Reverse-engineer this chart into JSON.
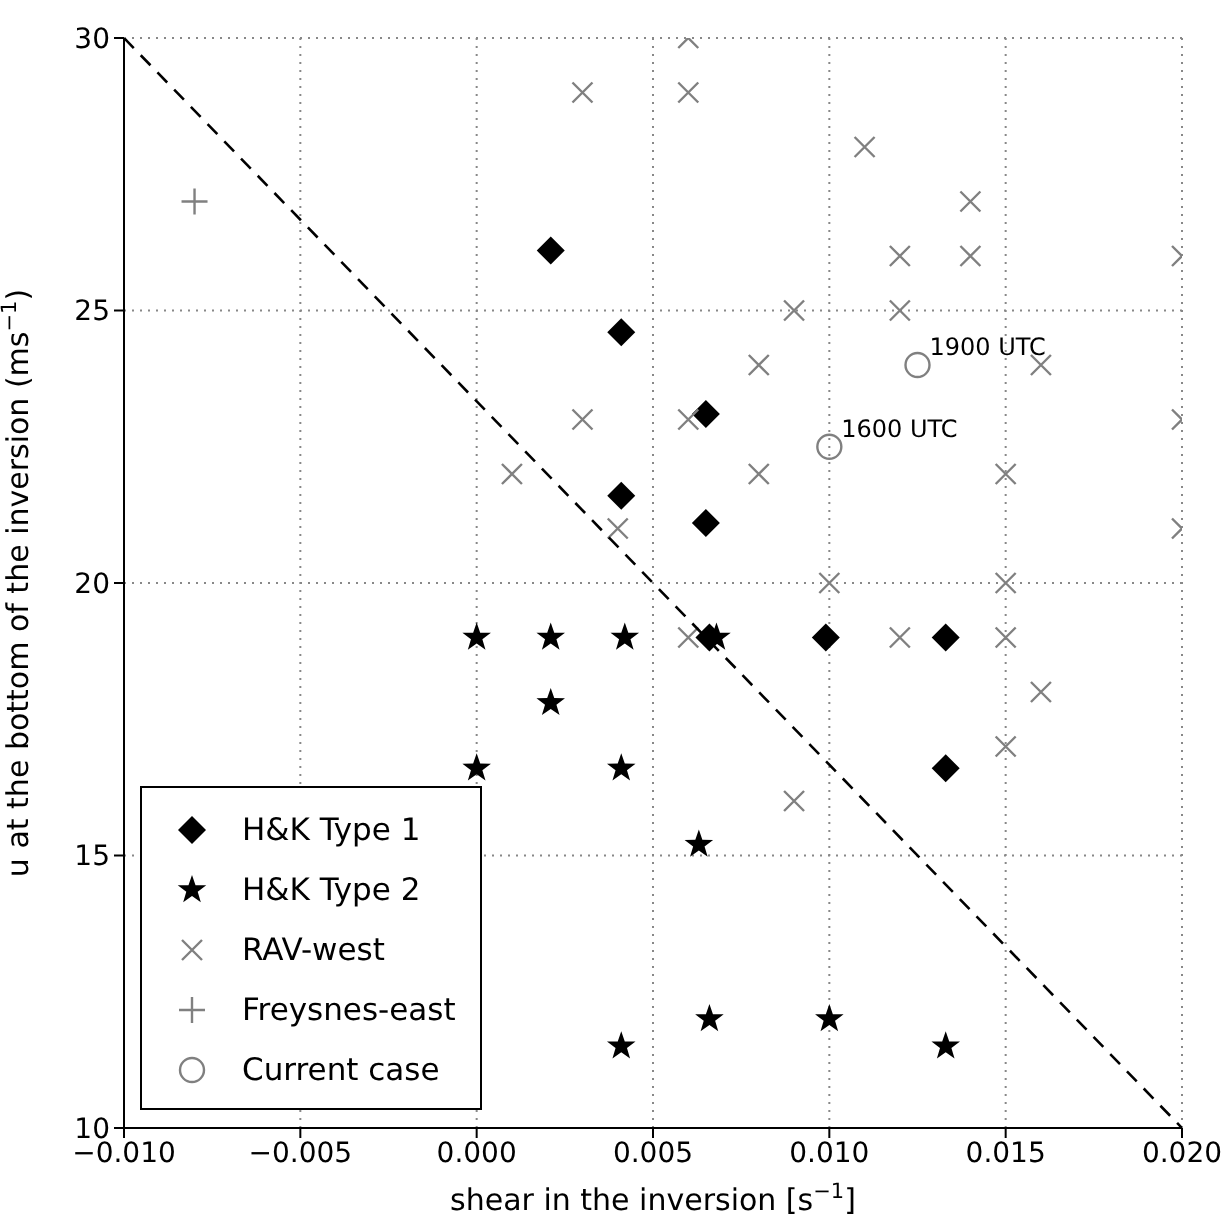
{
  "chart_data": {
    "type": "scatter",
    "xlabel": "shear in the inversion [s$^{−1}$]",
    "ylabel": "u at the bottom of the inversion (ms$^{−1}$)",
    "xlim": [
      -0.01,
      0.02
    ],
    "xticks": [
      {
        "value": -0.01,
        "label": "−0.010"
      },
      {
        "value": -0.005,
        "label": "−0.005"
      },
      {
        "value": 0,
        "label": "0.000"
      },
      {
        "value": 0.005,
        "label": "0.005"
      },
      {
        "value": 0.01,
        "label": "0.010"
      },
      {
        "value": 0.015,
        "label": "0.015"
      },
      {
        "value": 0.02,
        "label": "0.020"
      }
    ],
    "ylim": [
      10,
      30
    ],
    "yticks": [
      10,
      15,
      20,
      25,
      30
    ],
    "grid": true,
    "legend": "bottom left",
    "series": [
      {
        "name": "H&K Type 1",
        "marker": "diamond",
        "color": "#000000",
        "x": [
          0.0021,
          0.0041,
          0.0041,
          0.0065,
          0.0065,
          0.0066,
          0.0099,
          0.0133,
          0.0133
        ],
        "values": [
          26.1,
          24.6,
          21.6,
          23.1,
          21.1,
          19.0,
          19.0,
          19.0,
          16.6
        ]
      },
      {
        "name": "H&K Type 2",
        "marker": "star",
        "color": "#000000",
        "x": [
          0,
          0.0021,
          0.0042,
          0.0068,
          0.0021,
          0,
          0.0041,
          0.0063,
          0.0066,
          0.01,
          0.0041,
          0.0133
        ],
        "values": [
          19.0,
          19.0,
          19.0,
          19.0,
          17.8,
          16.6,
          16.6,
          15.2,
          12.0,
          12.0,
          11.5,
          11.5
        ]
      },
      {
        "name": "RAV-west",
        "marker": "x",
        "color": "#808080",
        "x": [
          0.003,
          0.003,
          0.001,
          0.004,
          0.006,
          0.006,
          0.011,
          0.014,
          0.012,
          0.014,
          0.02,
          0.009,
          0.012,
          0.008,
          0.016,
          0.006,
          0.02,
          0.008,
          0.015,
          0.02,
          0.01,
          0.015,
          0.006,
          0.012,
          0.015,
          0.016,
          0.015,
          0.009
        ],
        "values": [
          29,
          23,
          22,
          21,
          30,
          29,
          28,
          27,
          26,
          26,
          26,
          25,
          25,
          24,
          24,
          23,
          23,
          22,
          22,
          21,
          20,
          20,
          19,
          19,
          19,
          18,
          17,
          16
        ]
      },
      {
        "name": "Freysnes-east",
        "marker": "cross",
        "color": "#808080",
        "x": [
          -0.008
        ],
        "values": [
          27
        ]
      },
      {
        "name": "Current case",
        "marker": "circle",
        "color": "#808080",
        "x": [
          0.0125,
          0.01
        ],
        "values": [
          24.0,
          22.5
        ]
      },
      {
        "type": "line",
        "marker": "none",
        "line_style": "dashed",
        "color": "#000000",
        "x": [
          -0.01,
          0.02
        ],
        "values": [
          30,
          10
        ]
      }
    ],
    "annotations": [
      {
        "text": "1900 UTC",
        "x": 0.0125,
        "y": 24.0
      },
      {
        "text": "1600 UTC",
        "x": 0.01,
        "y": 22.5
      }
    ]
  }
}
